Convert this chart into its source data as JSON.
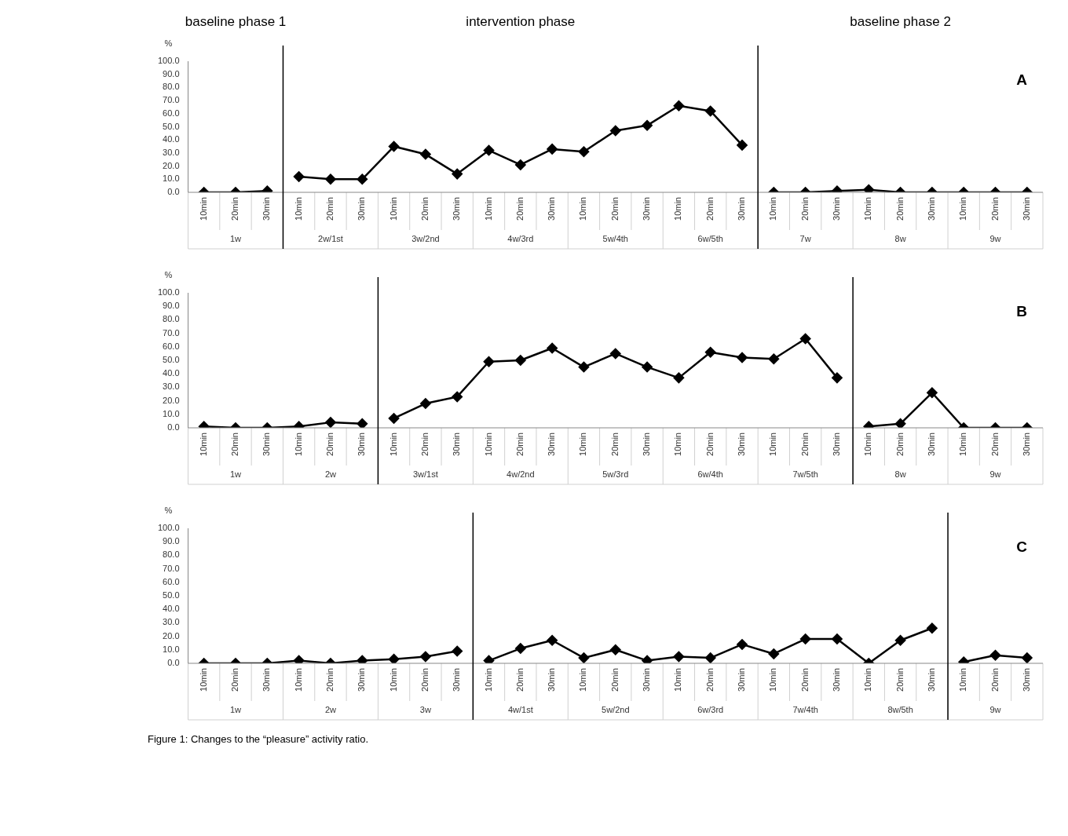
{
  "chart_data": [
    {
      "type": "line",
      "ylabel": "%",
      "categories": [
        "10min",
        "20min",
        "30min",
        "10min",
        "20min",
        "30min",
        "10min",
        "20min",
        "30min",
        "10min",
        "20min",
        "30min",
        "10min",
        "20min",
        "30min",
        "10min",
        "20min",
        "30min",
        "10min",
        "20min",
        "30min",
        "10min",
        "20min",
        "30min",
        "10min",
        "20min",
        "30min"
      ],
      "series": [
        {
          "color": "#000000",
          "values": [
            0,
            0,
            1,
            null,
            null,
            null,
            null,
            null,
            null,
            null,
            null,
            null,
            null,
            null,
            null,
            null,
            null,
            null,
            null,
            null,
            null,
            null,
            null,
            null,
            null,
            null,
            null
          ]
        },
        {
          "color": "#000000",
          "values": [
            null,
            null,
            null,
            12,
            10,
            10,
            35,
            29,
            14,
            32,
            21,
            33,
            31,
            47,
            51,
            66,
            62,
            36,
            null,
            null,
            null,
            null,
            null,
            null,
            null,
            null,
            null
          ]
        },
        {
          "color": "#000000",
          "values": [
            null,
            null,
            null,
            null,
            null,
            null,
            null,
            null,
            null,
            null,
            null,
            null,
            null,
            null,
            null,
            null,
            null,
            null,
            0,
            0,
            1,
            2,
            0,
            0,
            0,
            0,
            0
          ]
        }
      ],
      "ylim": [
        0,
        100
      ],
      "yticks": [
        {
          "value": 0,
          "label": "0.0"
        },
        {
          "value": 10,
          "label": "10.0"
        },
        {
          "value": 20,
          "label": "20.0"
        },
        {
          "value": 30,
          "label": "30.0"
        },
        {
          "value": 40,
          "label": "40.0"
        },
        {
          "value": 50,
          "label": "50.0"
        },
        {
          "value": 60,
          "label": "60.0"
        },
        {
          "value": 70,
          "label": "70.0"
        },
        {
          "value": 80,
          "label": "80.0"
        },
        {
          "value": 90,
          "label": "90.0"
        },
        {
          "value": 100,
          "label": "100.0"
        }
      ],
      "marker": "diamond",
      "grid": false,
      "legend": false,
      "annotations": [
        "A",
        "1w",
        "2w/1st",
        "3w/2nd",
        "4w/3rd",
        "5w/4th",
        "6w/5th",
        "7w",
        "8w",
        "9w",
        "baseline phase 1",
        "intervention phase",
        "baseline phase 2"
      ]
    },
    {
      "type": "line",
      "ylabel": "%",
      "categories": [
        "10min",
        "20min",
        "30min",
        "10min",
        "20min",
        "30min",
        "10min",
        "20min",
        "30min",
        "10min",
        "20min",
        "30min",
        "10min",
        "20min",
        "30min",
        "10min",
        "20min",
        "30min",
        "10min",
        "20min",
        "30min",
        "10min",
        "20min",
        "30min",
        "10min",
        "20min",
        "30min"
      ],
      "series": [
        {
          "color": "#000000",
          "values": [
            1,
            0,
            0,
            1,
            4,
            3,
            null,
            null,
            null,
            null,
            null,
            null,
            null,
            null,
            null,
            null,
            null,
            null,
            null,
            null,
            null,
            null,
            null,
            null,
            null,
            null,
            null
          ]
        },
        {
          "color": "#000000",
          "values": [
            null,
            null,
            null,
            null,
            null,
            null,
            7,
            18,
            23,
            49,
            50,
            59,
            45,
            55,
            45,
            37,
            56,
            52,
            51,
            66,
            37,
            null,
            null,
            null,
            null,
            null,
            null
          ]
        },
        {
          "color": "#000000",
          "values": [
            null,
            null,
            null,
            null,
            null,
            null,
            null,
            null,
            null,
            null,
            null,
            null,
            null,
            null,
            null,
            null,
            null,
            null,
            null,
            null,
            null,
            1,
            3,
            26,
            0,
            0,
            0
          ]
        }
      ],
      "ylim": [
        0,
        100
      ],
      "yticks": [
        {
          "value": 0,
          "label": "0.0"
        },
        {
          "value": 10,
          "label": "10.0"
        },
        {
          "value": 20,
          "label": "20.0"
        },
        {
          "value": 30,
          "label": "30.0"
        },
        {
          "value": 40,
          "label": "40.0"
        },
        {
          "value": 50,
          "label": "50.0"
        },
        {
          "value": 60,
          "label": "60.0"
        },
        {
          "value": 70,
          "label": "70.0"
        },
        {
          "value": 80,
          "label": "80.0"
        },
        {
          "value": 90,
          "label": "90.0"
        },
        {
          "value": 100,
          "label": "100.0"
        }
      ],
      "marker": "diamond",
      "grid": false,
      "legend": false,
      "annotations": [
        "B",
        "1w",
        "2w",
        "3w/1st",
        "4w/2nd",
        "5w/3rd",
        "6w/4th",
        "7w/5th",
        "8w",
        "9w"
      ]
    },
    {
      "type": "line",
      "ylabel": "%",
      "categories": [
        "10min",
        "20min",
        "30min",
        "10min",
        "20min",
        "30min",
        "10min",
        "20min",
        "30min",
        "10min",
        "20min",
        "30min",
        "10min",
        "20min",
        "30min",
        "10min",
        "20min",
        "30min",
        "10min",
        "20min",
        "30min",
        "10min",
        "20min",
        "30min",
        "10min",
        "20min",
        "30min"
      ],
      "series": [
        {
          "color": "#000000",
          "values": [
            0,
            0,
            0,
            2,
            0,
            2,
            3,
            5,
            9,
            null,
            null,
            null,
            null,
            null,
            null,
            null,
            null,
            null,
            null,
            null,
            null,
            null,
            null,
            null,
            null,
            null,
            null
          ]
        },
        {
          "color": "#000000",
          "values": [
            null,
            null,
            null,
            null,
            null,
            null,
            null,
            null,
            null,
            2,
            11,
            17,
            4,
            10,
            2,
            5,
            4,
            14,
            7,
            18,
            18,
            0,
            17,
            26,
            null,
            null,
            null
          ]
        },
        {
          "color": "#000000",
          "values": [
            null,
            null,
            null,
            null,
            null,
            null,
            null,
            null,
            null,
            null,
            null,
            null,
            null,
            null,
            null,
            null,
            null,
            null,
            null,
            null,
            null,
            null,
            null,
            null,
            1,
            6,
            4
          ]
        }
      ],
      "ylim": [
        0,
        100
      ],
      "yticks": [
        {
          "value": 0,
          "label": "0.0"
        },
        {
          "value": 10,
          "label": "10.0"
        },
        {
          "value": 20,
          "label": "20.0"
        },
        {
          "value": 30,
          "label": "30.0"
        },
        {
          "value": 40,
          "label": "40.0"
        },
        {
          "value": 50,
          "label": "50.0"
        },
        {
          "value": 60,
          "label": "60.0"
        },
        {
          "value": 70,
          "label": "70.0"
        },
        {
          "value": 80,
          "label": "80.0"
        },
        {
          "value": 90,
          "label": "90.0"
        },
        {
          "value": 100,
          "label": "100.0"
        }
      ],
      "marker": "diamond",
      "grid": false,
      "legend": false,
      "annotations": [
        "C",
        "1w",
        "2w",
        "3w",
        "4w/1st",
        "5w/2nd",
        "6w/3rd",
        "7w/4th",
        "8w/5th",
        "9w",
        "Figure 1: Changes to the “pleasure” activity ratio."
      ]
    }
  ]
}
